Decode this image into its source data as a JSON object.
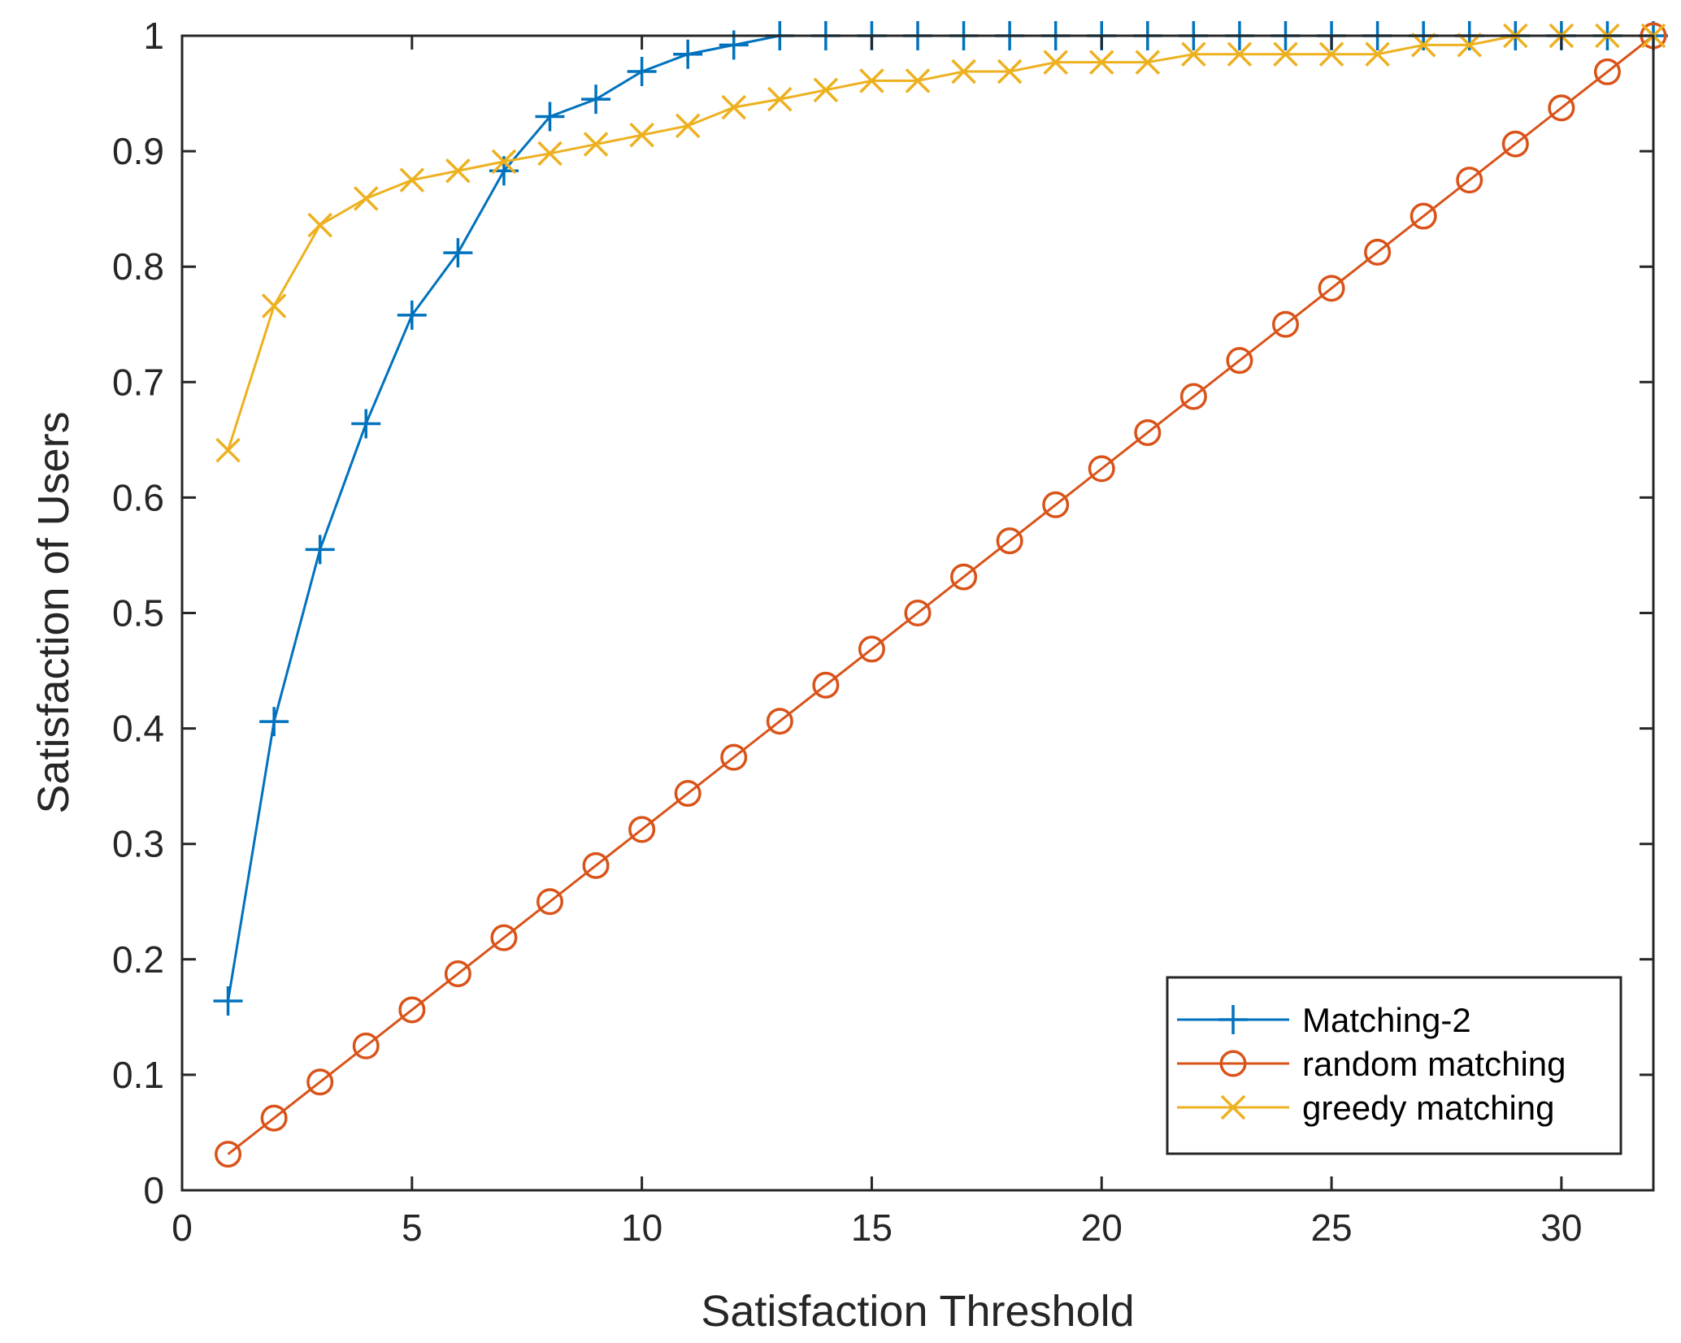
{
  "chart_data": {
    "type": "line",
    "title": "",
    "xlabel": "Satisfaction Threshold",
    "ylabel": "Satisfaction of Users",
    "xlim": [
      0,
      32
    ],
    "ylim": [
      0,
      1
    ],
    "xticks": [
      0,
      5,
      10,
      15,
      20,
      25,
      30
    ],
    "yticks": [
      0,
      0.1,
      0.2,
      0.3,
      0.4,
      0.5,
      0.6,
      0.7,
      0.8,
      0.9,
      1
    ],
    "ytick_labels": [
      "0",
      "0.1",
      "0.2",
      "0.3",
      "0.4",
      "0.5",
      "0.6",
      "0.7",
      "0.8",
      "0.9",
      "1"
    ],
    "grid": false,
    "legend_position": "bottom-right",
    "x": [
      1,
      2,
      3,
      4,
      5,
      6,
      7,
      8,
      9,
      10,
      11,
      12,
      13,
      14,
      15,
      16,
      17,
      18,
      19,
      20,
      21,
      22,
      23,
      24,
      25,
      26,
      27,
      28,
      29,
      30,
      31,
      32
    ],
    "series": [
      {
        "name": "Matching-2",
        "color": "#0072BD",
        "marker": "plus",
        "values": [
          0.164,
          0.406,
          0.555,
          0.664,
          0.758,
          0.812,
          0.883,
          0.93,
          0.945,
          0.969,
          0.984,
          0.992,
          1,
          1,
          1,
          1,
          1,
          1,
          1,
          1,
          1,
          1,
          1,
          1,
          1,
          1,
          1,
          1,
          1,
          1,
          1,
          1
        ]
      },
      {
        "name": "random matching",
        "color": "#D95319",
        "marker": "circle",
        "values": [
          0.03125,
          0.0625,
          0.09375,
          0.125,
          0.15625,
          0.1875,
          0.21875,
          0.25,
          0.28125,
          0.3125,
          0.34375,
          0.375,
          0.40625,
          0.4375,
          0.46875,
          0.5,
          0.53125,
          0.5625,
          0.59375,
          0.625,
          0.65625,
          0.6875,
          0.71875,
          0.75,
          0.78125,
          0.8125,
          0.84375,
          0.875,
          0.90625,
          0.9375,
          0.96875,
          1
        ]
      },
      {
        "name": "greedy matching",
        "color": "#EDB120",
        "marker": "x",
        "values": [
          0.641,
          0.766,
          0.836,
          0.859,
          0.875,
          0.883,
          0.891,
          0.898,
          0.906,
          0.914,
          0.922,
          0.938,
          0.945,
          0.953,
          0.961,
          0.961,
          0.969,
          0.969,
          0.977,
          0.977,
          0.977,
          0.984,
          0.984,
          0.984,
          0.984,
          0.984,
          0.992,
          0.992,
          1,
          1,
          1,
          1
        ]
      }
    ]
  }
}
